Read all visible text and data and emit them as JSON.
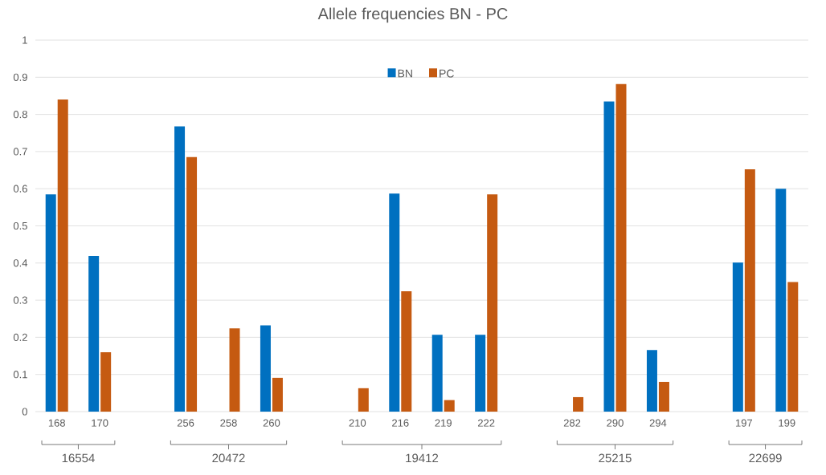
{
  "chart_data": {
    "type": "bar",
    "title": "Allele frequencies BN - PC",
    "categories": [
      "168",
      "170",
      null,
      "256",
      "258",
      "260",
      null,
      "210",
      "216",
      "219",
      "222",
      null,
      "282",
      "290",
      "294",
      null,
      "197",
      "199"
    ],
    "series": [
      {
        "name": "BN",
        "color": "#0070c0",
        "values": [
          0.585,
          0.419,
          null,
          0.768,
          null,
          0.232,
          null,
          null,
          0.587,
          0.207,
          0.207,
          null,
          null,
          0.835,
          0.166,
          null,
          0.401,
          0.6
        ]
      },
      {
        "name": "PC",
        "color": "#c55a11",
        "values": [
          0.84,
          0.16,
          null,
          0.685,
          0.224,
          0.091,
          null,
          0.063,
          0.324,
          0.031,
          0.585,
          null,
          0.039,
          0.882,
          0.08,
          null,
          0.652,
          0.349
        ]
      }
    ],
    "annotations": [
      "16554",
      "20472",
      "19412",
      "25215",
      "22699"
    ],
    "ylim": [
      0,
      1
    ],
    "yticks": [
      0,
      0.1,
      0.2,
      0.3,
      0.4,
      0.5,
      0.6,
      0.7,
      0.8,
      0.9,
      1
    ],
    "grid": "y",
    "legend": "top"
  }
}
